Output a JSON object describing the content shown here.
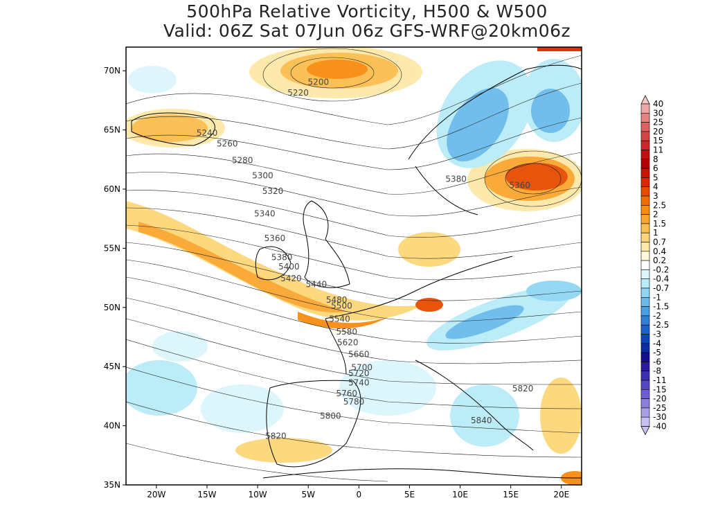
{
  "title": {
    "line1": "500hPa Relative Vorticity, H500 & W500",
    "line2": "Valid: 06Z Sat 07Jun 06z GFS-WRF@20km06z"
  },
  "map": {
    "lon_range": [
      -23,
      22
    ],
    "lat_range": [
      35,
      72
    ],
    "lat_ticks": [
      {
        "value": 70,
        "label": "70N"
      },
      {
        "value": 65,
        "label": "65N"
      },
      {
        "value": 60,
        "label": "60N"
      },
      {
        "value": 55,
        "label": "55N"
      },
      {
        "value": 50,
        "label": "50N"
      },
      {
        "value": 45,
        "label": "45N"
      },
      {
        "value": 40,
        "label": "40N"
      },
      {
        "value": 35,
        "label": "35N"
      }
    ],
    "lon_ticks": [
      {
        "value": -20,
        "label": "20W"
      },
      {
        "value": -15,
        "label": "15W"
      },
      {
        "value": -10,
        "label": "10W"
      },
      {
        "value": -5,
        "label": "5W"
      },
      {
        "value": 0,
        "label": "0"
      },
      {
        "value": 5,
        "label": "5E"
      },
      {
        "value": 10,
        "label": "10E"
      },
      {
        "value": 15,
        "label": "15E"
      },
      {
        "value": 20,
        "label": "20E"
      }
    ],
    "contour_labels": [
      {
        "text": "5200",
        "lon": -4,
        "lat": 68.8
      },
      {
        "text": "5220",
        "lon": -6,
        "lat": 67.9
      },
      {
        "text": "5240",
        "lon": -15,
        "lat": 64.5
      },
      {
        "text": "5260",
        "lon": -13,
        "lat": 63.6
      },
      {
        "text": "5280",
        "lon": -11.5,
        "lat": 62.2
      },
      {
        "text": "5300",
        "lon": -9.5,
        "lat": 60.9
      },
      {
        "text": "5320",
        "lon": -8.5,
        "lat": 59.6
      },
      {
        "text": "5340",
        "lon": -9.3,
        "lat": 57.7
      },
      {
        "text": "5360",
        "lon": -8.3,
        "lat": 55.6
      },
      {
        "text": "5380",
        "lon": -7.6,
        "lat": 54.0
      },
      {
        "text": "5400",
        "lon": -6.9,
        "lat": 53.2
      },
      {
        "text": "5420",
        "lon": -6.7,
        "lat": 52.2
      },
      {
        "text": "5440",
        "lon": -4.2,
        "lat": 51.7
      },
      {
        "text": "5480",
        "lon": -2.2,
        "lat": 50.4
      },
      {
        "text": "5500",
        "lon": -1.7,
        "lat": 49.9
      },
      {
        "text": "5540",
        "lon": -1.9,
        "lat": 48.8
      },
      {
        "text": "5580",
        "lon": -1.2,
        "lat": 47.7
      },
      {
        "text": "5620",
        "lon": -1.1,
        "lat": 46.8
      },
      {
        "text": "5660",
        "lon": 0.0,
        "lat": 45.8
      },
      {
        "text": "5700",
        "lon": 0.3,
        "lat": 44.7
      },
      {
        "text": "5720",
        "lon": 0.0,
        "lat": 44.2
      },
      {
        "text": "5740",
        "lon": 0.0,
        "lat": 43.4
      },
      {
        "text": "5760",
        "lon": -1.2,
        "lat": 42.5
      },
      {
        "text": "5780",
        "lon": -0.5,
        "lat": 41.8
      },
      {
        "text": "5800",
        "lon": -2.8,
        "lat": 40.6
      },
      {
        "text": "5820",
        "lon": -8.2,
        "lat": 38.9
      },
      {
        "text": "5840",
        "lon": 12.1,
        "lat": 40.2
      },
      {
        "text": "5820",
        "lon": 16.2,
        "lat": 42.9
      },
      {
        "text": "5380",
        "lon": 9.6,
        "lat": 60.6
      },
      {
        "text": "5360",
        "lon": 15.9,
        "lat": 60.1
      }
    ]
  },
  "colorbar": {
    "labels": [
      "40",
      "30",
      "25",
      "20",
      "15",
      "11",
      "8",
      "6",
      "5",
      "4",
      "3",
      "2.5",
      "2",
      "1.5",
      "1",
      "0.7",
      "0.4",
      "0.2",
      "-0.2",
      "-0.4",
      "-0.7",
      "-1",
      "-1.5",
      "-2",
      "-2.5",
      "-3",
      "-4",
      "-5",
      "-6",
      "-8",
      "-11",
      "-15",
      "-20",
      "-25",
      "-30",
      "-40"
    ],
    "colors": [
      "#f6c9c9",
      "#eea6a6",
      "#e58383",
      "#dc6262",
      "#d44444",
      "#cc2626",
      "#c01010",
      "#b40000",
      "#c81400",
      "#dc2800",
      "#e64c00",
      "#f06e00",
      "#f78c10",
      "#f9a62e",
      "#fbbe50",
      "#fcd678",
      "#fde8a8",
      "#fff8da",
      "#ffffff",
      "#dcf6fb",
      "#b8ecf8",
      "#90d6f4",
      "#6abbec",
      "#4a9ee2",
      "#3080d6",
      "#1c62c8",
      "#0e46b8",
      "#0a2ca2",
      "#160e90",
      "#2a1aa0",
      "#3e30b2",
      "#5446c2",
      "#6c60d0",
      "#8a80dc",
      "#a8a0e6",
      "#c8c0f0"
    ]
  }
}
